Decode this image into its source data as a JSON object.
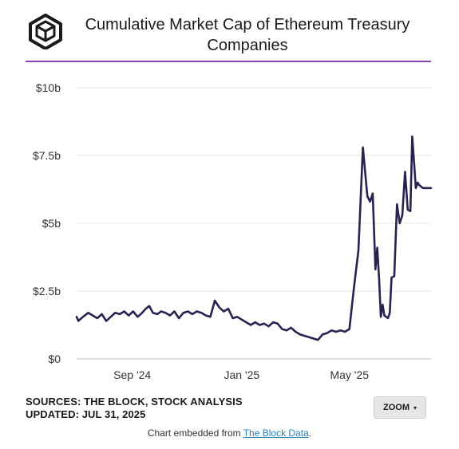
{
  "header": {
    "title": "Cumulative Market Cap of Ethereum Treasury Companies",
    "accent_color": "#8e44ad",
    "logo_icon": "the-block-cube-icon"
  },
  "chart_data": {
    "type": "line",
    "title": "Cumulative Market Cap of Ethereum Treasury Companies",
    "xlabel": "",
    "ylabel": "",
    "ylim": [
      0,
      10000000000
    ],
    "yticks": [
      0,
      2500000000,
      5000000000,
      7500000000,
      10000000000
    ],
    "ytick_labels": [
      "$0",
      "$2.5b",
      "$5b",
      "$7.5b",
      "$10b"
    ],
    "xlim": [
      "2024-07-01",
      "2025-07-31"
    ],
    "xticks": [
      "2024-09-01",
      "2025-01-01",
      "2025-05-01"
    ],
    "xtick_labels": [
      "Sep '24",
      "Jan '25",
      "May '25"
    ],
    "grid": true,
    "line_color": "#2a2150",
    "series": [
      {
        "x": [
          "2024-07-01",
          "2024-07-03",
          "2024-07-08",
          "2024-07-14",
          "2024-07-19",
          "2024-07-24",
          "2024-07-29",
          "2024-08-03",
          "2024-08-08",
          "2024-08-13",
          "2024-08-18",
          "2024-08-23",
          "2024-08-28",
          "2024-09-02",
          "2024-09-07",
          "2024-09-12",
          "2024-09-16",
          "2024-09-20",
          "2024-09-24",
          "2024-09-29",
          "2024-10-03",
          "2024-10-08",
          "2024-10-13",
          "2024-10-18",
          "2024-10-23",
          "2024-10-28",
          "2024-11-02",
          "2024-11-07",
          "2024-11-12",
          "2024-11-17",
          "2024-11-22",
          "2024-11-27",
          "2024-12-02",
          "2024-12-07",
          "2024-12-12",
          "2024-12-17",
          "2024-12-22",
          "2024-12-27",
          "2025-01-01",
          "2025-01-06",
          "2025-01-11",
          "2025-01-16",
          "2025-01-21",
          "2025-01-26",
          "2025-01-31",
          "2025-02-05",
          "2025-02-10",
          "2025-02-15",
          "2025-02-20",
          "2025-02-25",
          "2025-03-02",
          "2025-03-07",
          "2025-03-12",
          "2025-03-17",
          "2025-03-22",
          "2025-03-27",
          "2025-04-01",
          "2025-04-06",
          "2025-04-11",
          "2025-04-16",
          "2025-04-21",
          "2025-04-26",
          "2025-05-01",
          "2025-05-06",
          "2025-05-11",
          "2025-05-16",
          "2025-05-21",
          "2025-05-24",
          "2025-05-27",
          "2025-05-30",
          "2025-06-01",
          "2025-06-03",
          "2025-06-05",
          "2025-06-07",
          "2025-06-09",
          "2025-06-11",
          "2025-06-13",
          "2025-06-15",
          "2025-06-17",
          "2025-06-20",
          "2025-06-23",
          "2025-06-26",
          "2025-06-29",
          "2025-07-02",
          "2025-07-05",
          "2025-07-08",
          "2025-07-10",
          "2025-07-12",
          "2025-07-14",
          "2025-07-16",
          "2025-07-18",
          "2025-07-20",
          "2025-07-22",
          "2025-07-24",
          "2025-07-26",
          "2025-07-28",
          "2025-07-30",
          "2025-07-31"
        ],
        "values": [
          1550000000,
          1400000000,
          1550000000,
          1700000000,
          1600000000,
          1500000000,
          1650000000,
          1400000000,
          1550000000,
          1700000000,
          1650000000,
          1750000000,
          1600000000,
          1750000000,
          1550000000,
          1700000000,
          1850000000,
          1950000000,
          1700000000,
          1650000000,
          1750000000,
          1700000000,
          1600000000,
          1750000000,
          1500000000,
          1700000000,
          1750000000,
          1650000000,
          1750000000,
          1700000000,
          1600000000,
          1550000000,
          2150000000,
          1900000000,
          1750000000,
          1850000000,
          1500000000,
          1550000000,
          1450000000,
          1350000000,
          1250000000,
          1350000000,
          1250000000,
          1300000000,
          1200000000,
          1350000000,
          1300000000,
          1100000000,
          1050000000,
          1150000000,
          1000000000,
          900000000,
          850000000,
          800000000,
          750000000,
          700000000,
          900000000,
          950000000,
          1050000000,
          1000000000,
          1050000000,
          1000000000,
          1100000000,
          2600000000,
          4000000000,
          7800000000,
          6000000000,
          5800000000,
          6100000000,
          3300000000,
          4100000000,
          3000000000,
          1550000000,
          2000000000,
          1600000000,
          1550000000,
          1500000000,
          1700000000,
          3000000000,
          3050000000,
          5700000000,
          5000000000,
          5300000000,
          6900000000,
          5500000000,
          5450000000,
          8200000000,
          7300000000,
          6300000000,
          6500000000,
          6400000000,
          6350000000,
          6300000000,
          6300000000,
          6300000000,
          6300000000,
          6300000000,
          6300000000
        ]
      }
    ]
  },
  "footer": {
    "sources_line1": "SOURCES: THE BLOCK, STOCK ANALYSIS",
    "sources_line2": "UPDATED: JUL 31, 2025",
    "zoom_label": "ZOOM",
    "zoom_caret": "▾",
    "embed_prefix": "Chart embedded from ",
    "embed_link": "The Block Data",
    "embed_suffix": "."
  }
}
